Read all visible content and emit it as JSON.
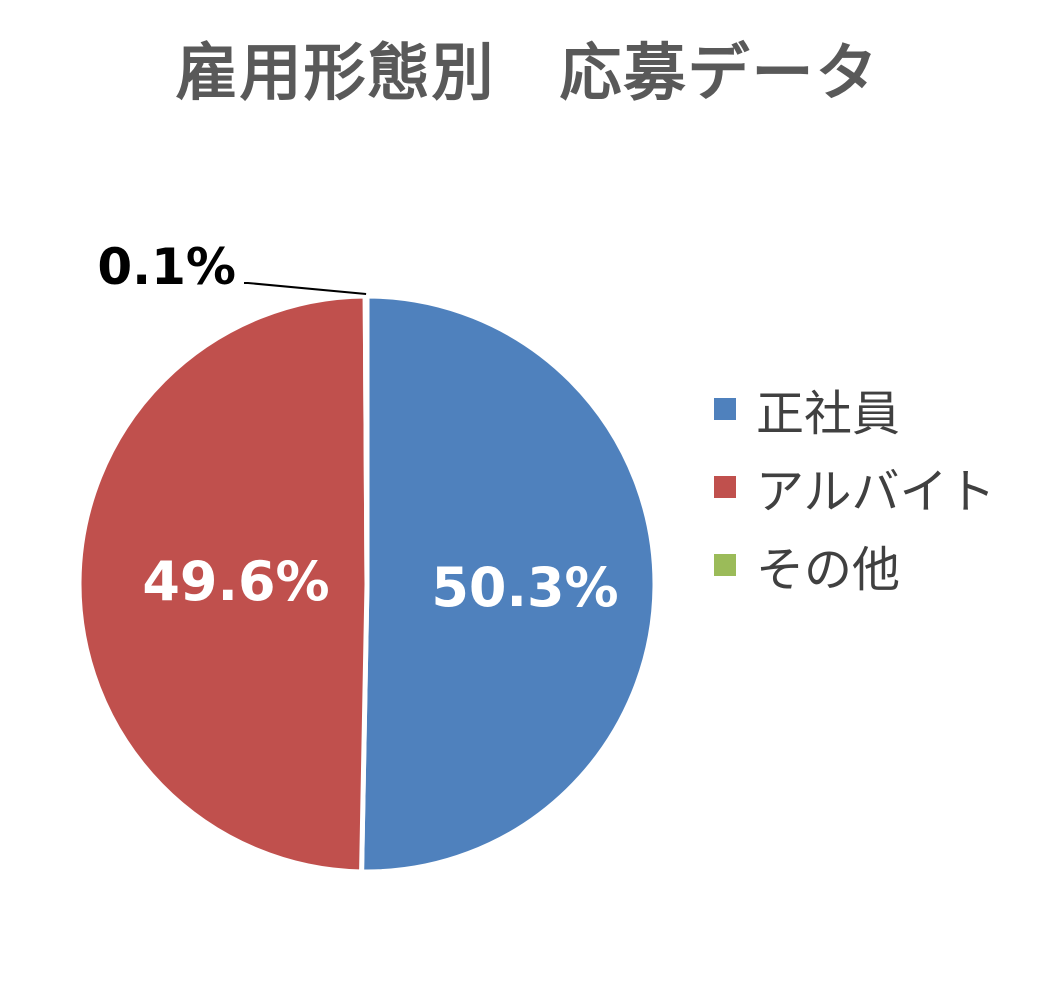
{
  "chart_data": {
    "type": "pie",
    "title": "雇用形態別　応募データ",
    "legend_position": "right",
    "categories": [
      "正社員",
      "アルバイト",
      "その他"
    ],
    "values": [
      50.3,
      49.6,
      0.1
    ],
    "labels": [
      "50.3%",
      "49.6%",
      "0.1%"
    ],
    "colors": [
      "#4F81BD",
      "#C0504D",
      "#9BBB59"
    ]
  }
}
